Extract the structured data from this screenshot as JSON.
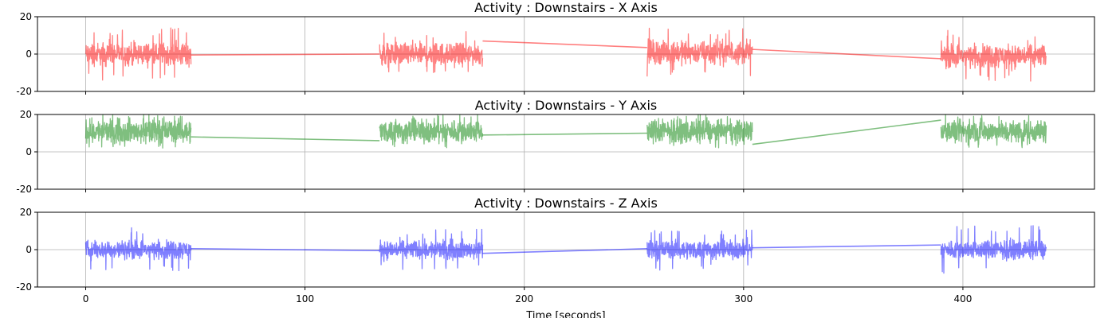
{
  "chart_data": [
    {
      "type": "line",
      "title": "Activity : Downstairs - X Axis",
      "color": "#ff0000",
      "ylim": [
        -20,
        20
      ],
      "yticks": [
        -20,
        0,
        20
      ],
      "xlim": [
        -22,
        460
      ],
      "grid": true,
      "segments": [
        {
          "x0": 0,
          "x1": 48,
          "center": 0,
          "amplitude": 5,
          "peak": 14
        },
        {
          "x0": 134,
          "x1": 181,
          "center": 0,
          "amplitude": 5,
          "peak": 12
        },
        {
          "x0": 256,
          "x1": 304,
          "center": 1,
          "amplitude": 5,
          "peak": 14
        },
        {
          "x0": 390,
          "x1": 438,
          "center": -1,
          "amplitude": 5,
          "peak": 13
        }
      ],
      "bridges": [
        {
          "x": [
            48,
            134
          ],
          "y": [
            -0.5,
            0
          ]
        },
        {
          "x": [
            181,
            256
          ],
          "y": [
            7,
            3.5
          ]
        },
        {
          "x": [
            304,
            390
          ],
          "y": [
            2.5,
            -2.5
          ]
        }
      ]
    },
    {
      "type": "line",
      "title": "Activity : Downstairs - Y Axis",
      "color": "#008000",
      "ylim": [
        -20,
        20
      ],
      "yticks": [
        -20,
        0,
        20
      ],
      "xlim": [
        -22,
        460
      ],
      "grid": true,
      "segments": [
        {
          "x0": 0,
          "x1": 48,
          "center": 11,
          "amplitude": 5,
          "peak": 20
        },
        {
          "x0": 134,
          "x1": 181,
          "center": 11,
          "amplitude": 5,
          "peak": 20
        },
        {
          "x0": 256,
          "x1": 304,
          "center": 11,
          "amplitude": 5,
          "peak": 20
        },
        {
          "x0": 390,
          "x1": 438,
          "center": 11,
          "amplitude": 5,
          "peak": 20
        }
      ],
      "bridges": [
        {
          "x": [
            48,
            134
          ],
          "y": [
            8,
            6
          ]
        },
        {
          "x": [
            181,
            256
          ],
          "y": [
            9,
            10
          ]
        },
        {
          "x": [
            304,
            390
          ],
          "y": [
            4,
            17
          ]
        }
      ]
    },
    {
      "type": "line",
      "title": "Activity : Downstairs - Z Axis",
      "color": "#0000ff",
      "ylim": [
        -20,
        20
      ],
      "yticks": [
        -20,
        0,
        20
      ],
      "xlim": [
        -22,
        460
      ],
      "grid": true,
      "xticks": [
        0,
        100,
        200,
        300,
        400
      ],
      "xlabel": "Time [seconds]",
      "segments": [
        {
          "x0": 0,
          "x1": 48,
          "center": 0,
          "amplitude": 4,
          "peak": 12
        },
        {
          "x0": 134,
          "x1": 181,
          "center": 0,
          "amplitude": 4,
          "peak": 11
        },
        {
          "x0": 256,
          "x1": 304,
          "center": 0,
          "amplitude": 4,
          "peak": 11
        },
        {
          "x0": 390,
          "x1": 438,
          "center": 0,
          "amplitude": 4,
          "peak": 13
        }
      ],
      "bridges": [
        {
          "x": [
            48,
            134
          ],
          "y": [
            0.5,
            -0.5
          ]
        },
        {
          "x": [
            181,
            256
          ],
          "y": [
            -2,
            0.5
          ]
        },
        {
          "x": [
            304,
            390
          ],
          "y": [
            1,
            2.5
          ]
        }
      ]
    }
  ]
}
